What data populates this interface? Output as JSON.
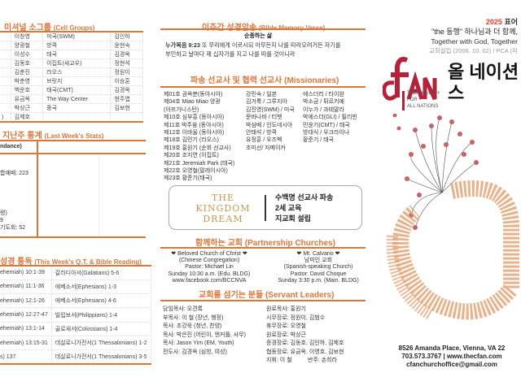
{
  "cell_groups": {
    "title": "미셔널 소그룹",
    "title_en": "(Cell Groups)",
    "rows": [
      [
        "",
        "이창영",
        "미국(SWM)",
        "김인하"
      ],
      [
        "",
        "양광철",
        "방콕",
        "윤현숙"
      ],
      [
        "",
        "이성수",
        "태국",
        "김경옥"
      ],
      [
        "",
        "김동호",
        "이집트(새교우)",
        "정현석"
      ],
      [
        "",
        "김춘진",
        "라오스",
        "정원이"
      ],
      [
        "",
        "박춘영",
        "브릿지",
        "이승훈"
      ],
      [
        "",
        "백운호",
        "태국(CMT)",
        "김경옥"
      ],
      [
        "",
        "유금옥",
        "The Way Center",
        "현주엽"
      ],
      [
        "",
        "박상근",
        "중국",
        "김보현"
      ],
      [
        ")",
        "김제호",
        "",
        ""
      ]
    ]
  },
  "stats": {
    "title": "지난주 통계",
    "title_en": "(Last Week's Stats)",
    "header": "ndance)",
    "lines": [
      "합예배: 223",
      "령)",
      "9",
      "기도회: 52"
    ]
  },
  "bible_reading": {
    "title": "성경 통독",
    "title_en": "(This Week's Q.T. & Bible Reading)",
    "rows": [
      [
        "ehemiah) 10:1-39",
        "갈라디아서(Galatians) 5-6"
      ],
      [
        "ehemiah) 11:1-36",
        "에베소서(Ephesians) 1-3"
      ],
      [
        "ehemiah) 12:1-26",
        "에베소서(Ephesians) 4-6"
      ],
      [
        "ehemiah) 12:27-47",
        "빌립보서(Philippians) 1-4"
      ],
      [
        "ehemiah) 13:1-14",
        "골로새서(Colossians) 1-4"
      ],
      [
        "ehemiah) 13:15-31",
        "데살로니가전서(1 Thessalonians) 1-2"
      ],
      [
        "s) 137",
        "데살로니가전서(1 Thessalonians) 3-5"
      ]
    ]
  },
  "memory_verse": {
    "title": "이주간 성경암송",
    "title_en": "(Bible Memory Verse)",
    "heading": "순종하는 삶",
    "reference": "누가복음 9:23",
    "text1": "또 무리에게 이르시되 아무든지 나를 따라오려거든 자기를",
    "text2": "부인하고 날마다 제 십자가를 지고 나를 따를 것이니라"
  },
  "missionaries": {
    "title": "파송 선교사 및 협력 선교사",
    "title_en": "(Missionaries)",
    "col1": [
      "제01호 권옥분(동아시아)",
      "제04호 Miao Miao 양광",
      "(아프가니스탄)",
      "제10호 심부흥 (동아시아)",
      "제11호 박주융 (동아시아)",
      "제12호 이바울 (동아시아)",
      "제18호 김민기 (라오스)",
      "제19호 홍원기 (순회 선교사)",
      "제20호 조지연 (이집트)",
      "제21호 Jeremiah Park (태국)",
      "제22호 오영철(말레이시아)",
      "제23호 황준기(태국)"
    ],
    "col2": [
      "강민숙 / 일본",
      "김거룩 / 그루지아",
      "김진영(SWM) / 미국",
      "문바나바 / 티벳",
      "박삼배 / 인도네시아",
      "안태석 / 방콕",
      "유정훈 / 우즈벡",
      "조미선/ 자메이카"
    ],
    "col3": [
      "에스더리 / 타이완",
      "박소금 / 튀르키예",
      "이누가 / 과테말라",
      "박에스더(GLI) / 필리핀",
      "민윤기(CMT) / 태국",
      "방대식 / 우크라이나",
      "황준기 / 태국"
    ]
  },
  "kingdom_dream": {
    "logo": [
      "THE",
      "KINGDOM",
      "DREAM"
    ],
    "lines": [
      "수백명 선교사 파송",
      "2세 교육",
      "지교회 설립"
    ]
  },
  "partnership": {
    "title": "함께하는 교회",
    "title_en": "(Partnership Churches)",
    "left": [
      "❤ Beloved Church of Christ ❤",
      "(Chinese Congregation)",
      "Pastor: Michael Lin",
      "Sunday 10:30 a.m. (Edu. BLDG)",
      "www.facebook.com/BCCNVA"
    ],
    "right": [
      "❤ Mt. Calvario ❤",
      "남미인 교회",
      "(Spanish-speaking Church)",
      "Pastor: David Choque",
      "Sunday 3:30 p.m. (Main. BLDG)"
    ]
  },
  "servants": {
    "title": "교회를 섬기는 분들",
    "title_en": "(Servant Leaders)",
    "left": [
      "담임목사: 오견록",
      "부목사: 이 철 (장년, 행정)",
      "목사: 조강욱 (청년, 찬양)",
      "목사: 박은진 (어린이, 엔커플, 사무)",
      "목사: Jason Yim (EM, Youth)",
      "전도사: 김경옥 (심방, 여성)"
    ],
    "right": [
      "원로목사: 홍원기",
      "시무장로: 정원이, 김범수",
      "휴무장로: 오영철",
      "원로장로: 박상근",
      "증경장로: 김동호, 김인하, 김제호",
      "협동장로: 유금옥, 이영호, 김보현",
      "지휘: 이 철",
      "반주: 손희라"
    ]
  },
  "cover": {
    "year": "2025",
    "year_rest": "표어",
    "tagline": "\"the 동행\" 하나님과 더 함께,",
    "tagline_en": "Together with God, Together",
    "founded": "교회설립 (2006. 10. 02) / PCA (미",
    "logo": "cfan",
    "name_ko": "올 네이션스",
    "logo_sub": [
      "THE CHURCH",
      "FOR",
      "ALL NATIONS"
    ],
    "address": "8526 Amanda Place, Vienna, VA 22",
    "phone_web": "703.573.3767 | www.thecfan.com",
    "email": "cfanchurchoffice@gmail.com"
  },
  "colors": {
    "accent": "#d9773a",
    "logo_red": "#b5203a",
    "gold": "#c09a4e"
  }
}
